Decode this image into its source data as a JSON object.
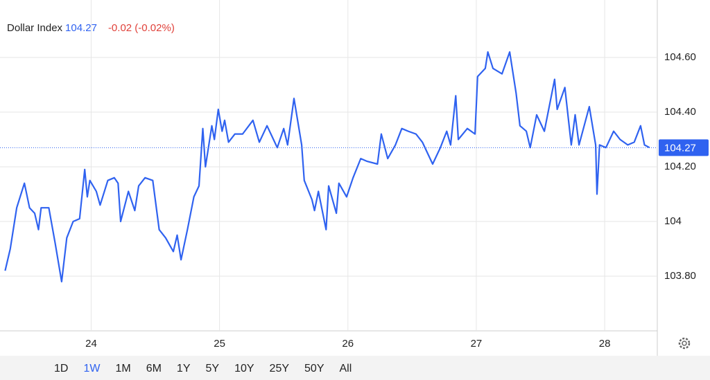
{
  "chart_data": {
    "type": "line",
    "title": "Dollar Index",
    "last_value": 104.27,
    "change_label": "-0.02 (-0.02%)",
    "x": [
      23.33,
      23.37,
      23.42,
      23.48,
      23.52,
      23.56,
      23.59,
      23.61,
      23.67,
      23.72,
      23.77,
      23.81,
      23.86,
      23.91,
      23.95,
      23.97,
      23.99,
      24.04,
      24.07,
      24.13,
      24.18,
      24.21,
      24.23,
      24.29,
      24.34,
      24.37,
      24.42,
      24.48,
      24.53,
      24.58,
      24.64,
      24.67,
      24.7,
      24.75,
      24.8,
      24.84,
      24.87,
      24.89,
      24.94,
      24.96,
      24.99,
      25.02,
      25.04,
      25.07,
      25.12,
      25.18,
      25.26,
      25.31,
      25.37,
      25.42,
      25.45,
      25.5,
      25.53,
      25.58,
      25.64,
      25.66,
      25.72,
      25.74,
      25.77,
      25.83,
      25.85,
      25.91,
      25.93,
      25.99,
      26.04,
      26.1,
      26.15,
      26.23,
      26.26,
      26.31,
      26.37,
      26.42,
      26.47,
      26.53,
      26.58,
      26.64,
      26.66,
      26.72,
      26.77,
      26.8,
      26.84,
      26.86,
      26.93,
      26.99,
      27.01,
      27.07,
      27.09,
      27.13,
      27.2,
      27.26,
      27.31,
      27.34,
      27.39,
      27.42,
      27.47,
      27.53,
      27.61,
      27.63,
      27.69,
      27.74,
      27.77,
      27.8,
      27.88,
      27.93,
      27.94,
      27.96,
      28.01,
      28.07,
      28.12,
      28.18,
      28.23,
      28.28,
      28.31,
      28.35
    ],
    "series": [
      {
        "name": "Dollar Index",
        "color": "#2f62f0",
        "values": [
          103.82,
          103.9,
          104.05,
          104.14,
          104.05,
          104.03,
          103.97,
          104.05,
          104.05,
          103.92,
          103.78,
          103.94,
          104.0,
          104.01,
          104.19,
          104.09,
          104.15,
          104.11,
          104.06,
          104.15,
          104.16,
          104.14,
          104.0,
          104.11,
          104.04,
          104.13,
          104.16,
          104.15,
          103.97,
          103.94,
          103.89,
          103.95,
          103.86,
          103.97,
          104.09,
          104.13,
          104.34,
          104.2,
          104.35,
          104.3,
          104.41,
          104.33,
          104.37,
          104.29,
          104.32,
          104.32,
          104.37,
          104.29,
          104.35,
          104.3,
          104.27,
          104.34,
          104.28,
          104.45,
          104.28,
          104.15,
          104.08,
          104.04,
          104.11,
          103.97,
          104.13,
          104.03,
          104.14,
          104.09,
          104.16,
          104.23,
          104.22,
          104.21,
          104.32,
          104.23,
          104.28,
          104.34,
          104.33,
          104.32,
          104.29,
          104.23,
          104.21,
          104.27,
          104.33,
          104.28,
          104.46,
          104.3,
          104.34,
          104.32,
          104.53,
          104.56,
          104.62,
          104.56,
          104.54,
          104.62,
          104.47,
          104.35,
          104.33,
          104.27,
          104.39,
          104.33,
          104.52,
          104.41,
          104.49,
          104.28,
          104.39,
          104.28,
          104.42,
          104.28,
          104.1,
          104.28,
          104.27,
          104.33,
          104.3,
          104.28,
          104.29,
          104.35,
          104.28,
          104.27
        ]
      }
    ],
    "xlim": [
      23.29,
      28.41
    ],
    "xticks": [
      24,
      25,
      26,
      27,
      28
    ],
    "ylim": [
      103.6,
      104.81
    ],
    "yticks": [
      {
        "value": 103.8,
        "label": "103.80"
      },
      104,
      {
        "value": 104.2,
        "label": "104.20"
      },
      {
        "value": 104.4,
        "label": "104.40"
      },
      {
        "value": 104.6,
        "label": "104.60"
      }
    ],
    "grid": true,
    "ranges": [
      "1D",
      "1W",
      "1M",
      "6M",
      "1Y",
      "5Y",
      "10Y",
      "25Y",
      "50Y",
      "All"
    ],
    "selected_range": 1
  }
}
